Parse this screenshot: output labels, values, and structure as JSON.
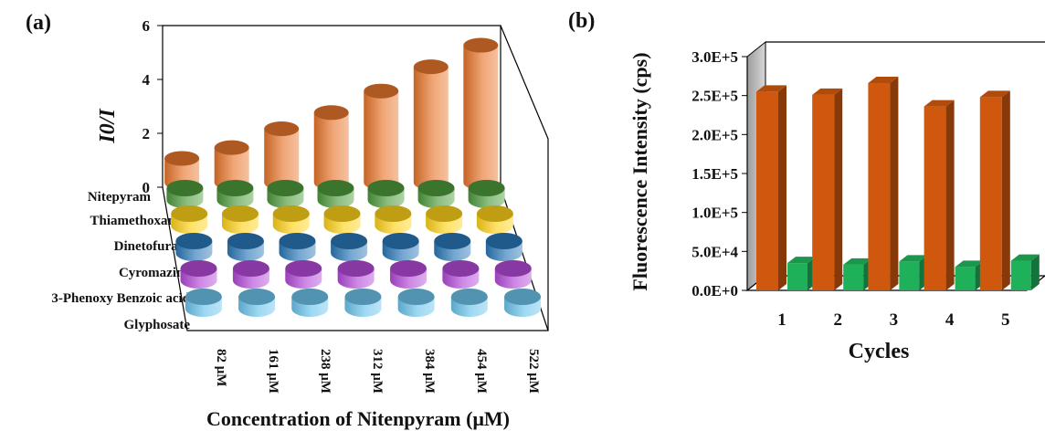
{
  "panels": {
    "a_label": "(a)",
    "b_label": "(b)"
  },
  "chart_data": [
    {
      "type": "bar",
      "variant": "3d-cylinder",
      "title": "",
      "xlabel": "Concentration of Nitenpyram (μM)",
      "ylabel": "I0/I",
      "ylim": [
        0,
        6
      ],
      "yticks": [
        "0",
        "2",
        "4",
        "6"
      ],
      "categories": [
        "82 μM",
        "161 μM",
        "238 μM",
        "312 μM",
        "384 μM",
        "454 μM",
        "522 μM"
      ],
      "series": [
        {
          "name": "Nitepyram",
          "values": [
            0.9,
            1.3,
            2.0,
            2.6,
            3.4,
            4.3,
            5.1
          ],
          "color": "#e8762c"
        },
        {
          "name": "Thiamethoxam",
          "values": [
            0.05,
            0.05,
            0.05,
            0.05,
            0.05,
            0.05,
            0.05
          ],
          "color": "#4e9a3c"
        },
        {
          "name": "Dinetofuran",
          "values": [
            0.05,
            0.05,
            0.05,
            0.05,
            0.05,
            0.05,
            0.05
          ],
          "color": "#ffd21a"
        },
        {
          "name": "Cyromazine",
          "values": [
            0.05,
            0.05,
            0.05,
            0.05,
            0.05,
            0.05,
            0.05
          ],
          "color": "#2a78b8"
        },
        {
          "name": "3-Phenoxy Benzoic acid",
          "values": [
            0.05,
            0.05,
            0.05,
            0.05,
            0.05,
            0.05,
            0.05
          ],
          "color": "#b44ad8"
        },
        {
          "name": "Glyphosate",
          "values": [
            0.05,
            0.05,
            0.05,
            0.05,
            0.05,
            0.05,
            0.05
          ],
          "color": "#6cc4ec"
        }
      ]
    },
    {
      "type": "bar",
      "variant": "3d-column",
      "title": "",
      "xlabel": "Cycles",
      "ylabel": "Fluorescence Intensity (cps)",
      "ylim": [
        0,
        300000
      ],
      "yticks": [
        "0.0E+0",
        "5.0E+4",
        "1.0E+5",
        "1.5E+5",
        "2.0E+5",
        "2.5E+5",
        "3.0E+5"
      ],
      "categories": [
        "1",
        "2",
        "3",
        "4",
        "5"
      ],
      "series": [
        {
          "values": [
            255000,
            251000,
            266000,
            236000,
            248000
          ],
          "color": "#d0580e"
        },
        {
          "values": [
            35000,
            33000,
            37000,
            30000,
            38000
          ],
          "color": "#1fb05a"
        }
      ]
    }
  ]
}
